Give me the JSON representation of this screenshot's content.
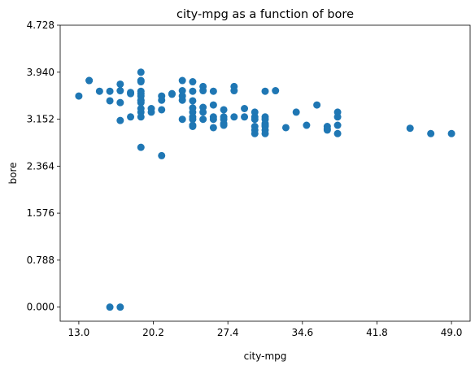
{
  "chart_data": {
    "type": "scatter",
    "title": "city-mpg as a function of bore",
    "xlabel": "city-mpg",
    "ylabel": "bore",
    "xlim": [
      11.2,
      50.8
    ],
    "ylim": [
      -0.2364,
      4.728
    ],
    "xticks": [
      "13.0",
      "20.2",
      "27.4",
      "34.6",
      "41.8",
      "49.0"
    ],
    "yticks": [
      "0.000",
      "0.788",
      "1.576",
      "2.364",
      "3.152",
      "3.940",
      "4.728"
    ],
    "xtick_values": [
      13.0,
      20.2,
      27.4,
      34.6,
      41.8,
      49.0
    ],
    "ytick_values": [
      0.0,
      0.788,
      1.576,
      2.364,
      3.152,
      3.94,
      4.728
    ],
    "grid": false,
    "marker_color": "#1f77b4",
    "points": [
      [
        13,
        3.54
      ],
      [
        14,
        3.8
      ],
      [
        14,
        3.8
      ],
      [
        15,
        3.62
      ],
      [
        16,
        3.62
      ],
      [
        16,
        3.46
      ],
      [
        16,
        0.0
      ],
      [
        17,
        0.0
      ],
      [
        17,
        3.74
      ],
      [
        17,
        3.63
      ],
      [
        17,
        3.43
      ],
      [
        17,
        3.13
      ],
      [
        18,
        3.58
      ],
      [
        18,
        3.6
      ],
      [
        18,
        3.19
      ],
      [
        19,
        3.94
      ],
      [
        19,
        3.8
      ],
      [
        19,
        3.78
      ],
      [
        19,
        3.62
      ],
      [
        19,
        3.58
      ],
      [
        19,
        3.54
      ],
      [
        19,
        3.47
      ],
      [
        19,
        3.46
      ],
      [
        19,
        3.43
      ],
      [
        19,
        3.33
      ],
      [
        19,
        3.27
      ],
      [
        19,
        3.19
      ],
      [
        19,
        2.68
      ],
      [
        20,
        3.33
      ],
      [
        20,
        3.27
      ],
      [
        21,
        3.54
      ],
      [
        21,
        3.47
      ],
      [
        21,
        3.31
      ],
      [
        21,
        2.54
      ],
      [
        22,
        3.58
      ],
      [
        22,
        3.57
      ],
      [
        23,
        3.8
      ],
      [
        23,
        3.63
      ],
      [
        23,
        3.54
      ],
      [
        23,
        3.47
      ],
      [
        23,
        3.15
      ],
      [
        24,
        3.78
      ],
      [
        24,
        3.62
      ],
      [
        24,
        3.46
      ],
      [
        24,
        3.34
      ],
      [
        24,
        3.27
      ],
      [
        24,
        3.19
      ],
      [
        24,
        3.15
      ],
      [
        24,
        3.05
      ],
      [
        24,
        3.03
      ],
      [
        25,
        3.7
      ],
      [
        25,
        3.63
      ],
      [
        25,
        3.35
      ],
      [
        25,
        3.27
      ],
      [
        25,
        3.15
      ],
      [
        26,
        3.62
      ],
      [
        26,
        3.39
      ],
      [
        26,
        3.19
      ],
      [
        26,
        3.15
      ],
      [
        26,
        3.01
      ],
      [
        27,
        3.31
      ],
      [
        27,
        3.19
      ],
      [
        27,
        3.15
      ],
      [
        27,
        3.08
      ],
      [
        27,
        3.05
      ],
      [
        28,
        3.7
      ],
      [
        28,
        3.63
      ],
      [
        28,
        3.19
      ],
      [
        29,
        3.33
      ],
      [
        29,
        3.19
      ],
      [
        30,
        3.27
      ],
      [
        30,
        3.19
      ],
      [
        30,
        3.15
      ],
      [
        30,
        3.03
      ],
      [
        30,
        2.97
      ],
      [
        30,
        2.91
      ],
      [
        31,
        3.62
      ],
      [
        31,
        3.19
      ],
      [
        31,
        3.15
      ],
      [
        31,
        3.08
      ],
      [
        31,
        3.05
      ],
      [
        31,
        3.03
      ],
      [
        31,
        2.97
      ],
      [
        31,
        2.91
      ],
      [
        32,
        3.63
      ],
      [
        33,
        3.01
      ],
      [
        34,
        3.27
      ],
      [
        35,
        3.05
      ],
      [
        36,
        3.39
      ],
      [
        37,
        3.03
      ],
      [
        37,
        2.99
      ],
      [
        37,
        2.97
      ],
      [
        38,
        3.27
      ],
      [
        38,
        3.19
      ],
      [
        38,
        3.05
      ],
      [
        38,
        2.91
      ],
      [
        45,
        3.0
      ],
      [
        47,
        2.91
      ],
      [
        49,
        2.91
      ]
    ]
  }
}
